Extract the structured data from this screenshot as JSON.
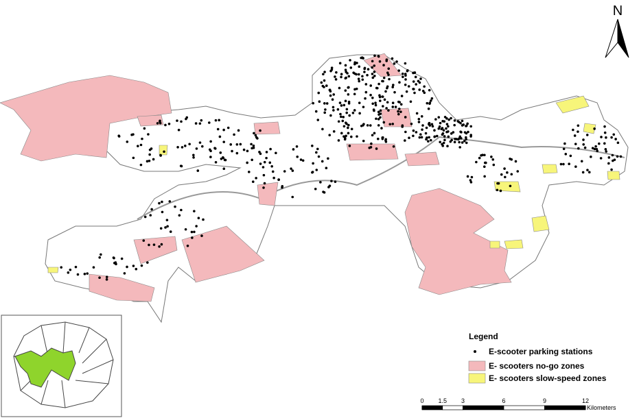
{
  "north_label": "N",
  "legend": {
    "title": "Legend",
    "items": [
      "E-scooter parking stations",
      "E- scooters no-go zones",
      "E- scooters slow-speed  zones"
    ]
  },
  "scale_bar": {
    "ticks": [
      0,
      1.5,
      3,
      6,
      9,
      12
    ],
    "unit": "Kilometers"
  }
}
